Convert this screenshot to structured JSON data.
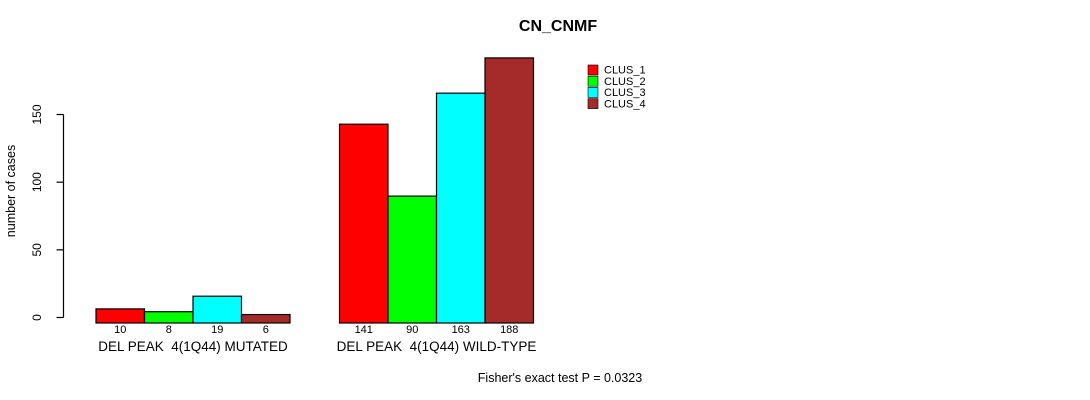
{
  "title": "CN_CNMF",
  "ylabel": "number of cases",
  "footer": "Fisher's exact test P = 0.0323",
  "chart_data": {
    "type": "bar",
    "title": "CN_CNMF",
    "xlabel": "",
    "ylabel": "number of cases",
    "categories": [
      "DEL PEAK  4(1Q44) MUTATED",
      "DEL PEAK  4(1Q44) WILD-TYPE"
    ],
    "series": [
      {
        "name": "CLUS_1",
        "color": "#FF0000",
        "values": [
          10,
          141
        ]
      },
      {
        "name": "CLUS_2",
        "color": "#00FF00",
        "values": [
          8,
          90
        ]
      },
      {
        "name": "CLUS_3",
        "color": "#00FFFF",
        "values": [
          19,
          163
        ]
      },
      {
        "name": "CLUS_4",
        "color": "#A52A2A",
        "values": [
          6,
          188
        ]
      }
    ],
    "bar_value_labels": [
      [
        10,
        8,
        19,
        6
      ],
      [
        141,
        90,
        163,
        188
      ]
    ],
    "yticks": [
      0,
      50,
      100,
      150
    ],
    "ylim": [
      0,
      188
    ],
    "grid": false,
    "legend_position": "top-right",
    "bar_border_color": "#000000",
    "annotation": "Fisher's exact test P = 0.0323"
  }
}
